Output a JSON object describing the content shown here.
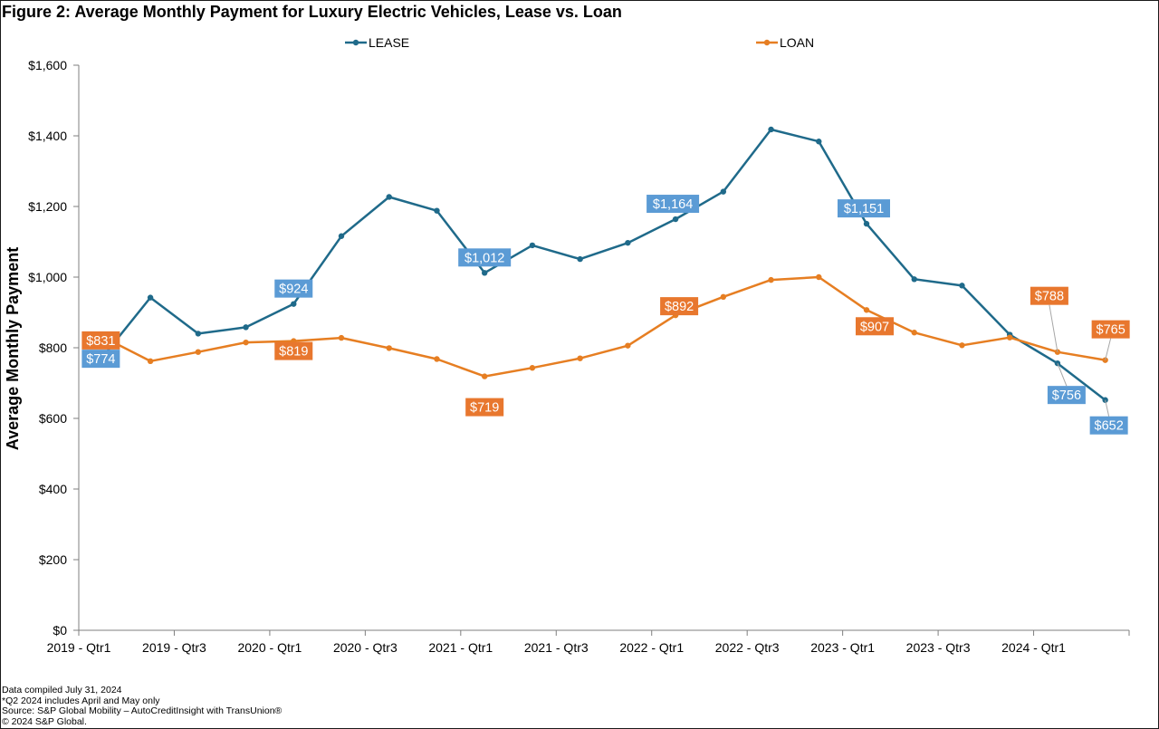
{
  "chart_data": {
    "type": "line",
    "title": "Figure 2: Average Monthly Payment for Luxury Electric Vehicles, Lease vs. Loan",
    "xlabel": "",
    "ylabel": "Average Monthly Payment",
    "ylim": [
      0,
      1600
    ],
    "y_ticks": [
      0,
      200,
      400,
      600,
      800,
      1000,
      1200,
      1400,
      1600
    ],
    "y_tick_labels": [
      "$0",
      "$200",
      "$400",
      "$600",
      "$800",
      "$1,000",
      "$1,200",
      "$1,400",
      "$1,600"
    ],
    "grid": false,
    "legend_position": "top",
    "categories": [
      "2019 - Qtr1",
      "2019 - Qtr2",
      "2019 - Qtr3",
      "2019 - Qtr4",
      "2020 - Qtr1",
      "2020 - Qtr2",
      "2020 - Qtr3",
      "2020 - Qtr4",
      "2021 - Qtr1",
      "2021 - Qtr2",
      "2021 - Qtr3",
      "2021 - Qtr4",
      "2022 - Qtr1",
      "2022 - Qtr2",
      "2022 - Qtr3",
      "2022 - Qtr4",
      "2023 - Qtr1",
      "2023 - Qtr2",
      "2023 - Qtr3",
      "2023 - Qtr4",
      "2024 - Qtr1",
      "2024 - Qtr2"
    ],
    "x_tick_labels": [
      "2019 - Qtr1",
      "2019 - Qtr3",
      "2020 - Qtr1",
      "2020 - Qtr3",
      "2021 - Qtr1",
      "2021 - Qtr3",
      "2022 - Qtr1",
      "2022 - Qtr3",
      "2023 - Qtr1",
      "2023 - Qtr3",
      "2024 - Qtr1"
    ],
    "series": [
      {
        "name": "LEASE",
        "color": "#1f6a8a",
        "label_color": "#5b9bd5",
        "values": [
          774,
          942,
          840,
          858,
          924,
          1116,
          1227,
          1188,
          1012,
          1090,
          1051,
          1097,
          1164,
          1242,
          1418,
          1384,
          1151,
          994,
          976,
          837,
          756,
          652
        ],
        "labels": [
          {
            "index": 0,
            "text": "$774"
          },
          {
            "index": 4,
            "text": "$924"
          },
          {
            "index": 8,
            "text": "$1,012"
          },
          {
            "index": 12,
            "text": "$1,164"
          },
          {
            "index": 16,
            "text": "$1,151"
          },
          {
            "index": 20,
            "text": "$756"
          },
          {
            "index": 21,
            "text": "$652"
          }
        ]
      },
      {
        "name": "LOAN",
        "color": "#e67e22",
        "label_color": "#e8772e",
        "values": [
          831,
          762,
          788,
          815,
          819,
          828,
          799,
          768,
          719,
          743,
          770,
          806,
          892,
          944,
          992,
          1000,
          907,
          843,
          807,
          829,
          788,
          765
        ],
        "labels": [
          {
            "index": 0,
            "text": "$831"
          },
          {
            "index": 4,
            "text": "$819"
          },
          {
            "index": 8,
            "text": "$719"
          },
          {
            "index": 12,
            "text": "$892"
          },
          {
            "index": 16,
            "text": "$907"
          },
          {
            "index": 20,
            "text": "$788"
          },
          {
            "index": 21,
            "text": "$765"
          }
        ]
      }
    ]
  },
  "notes": [
    "Data compiled July 31, 2024",
    "*Q2 2024 includes April and May only",
    "Source: S&P Global Mobility – AutoCreditInsight with TransUnion®",
    "© 2024 S&P Global."
  ]
}
